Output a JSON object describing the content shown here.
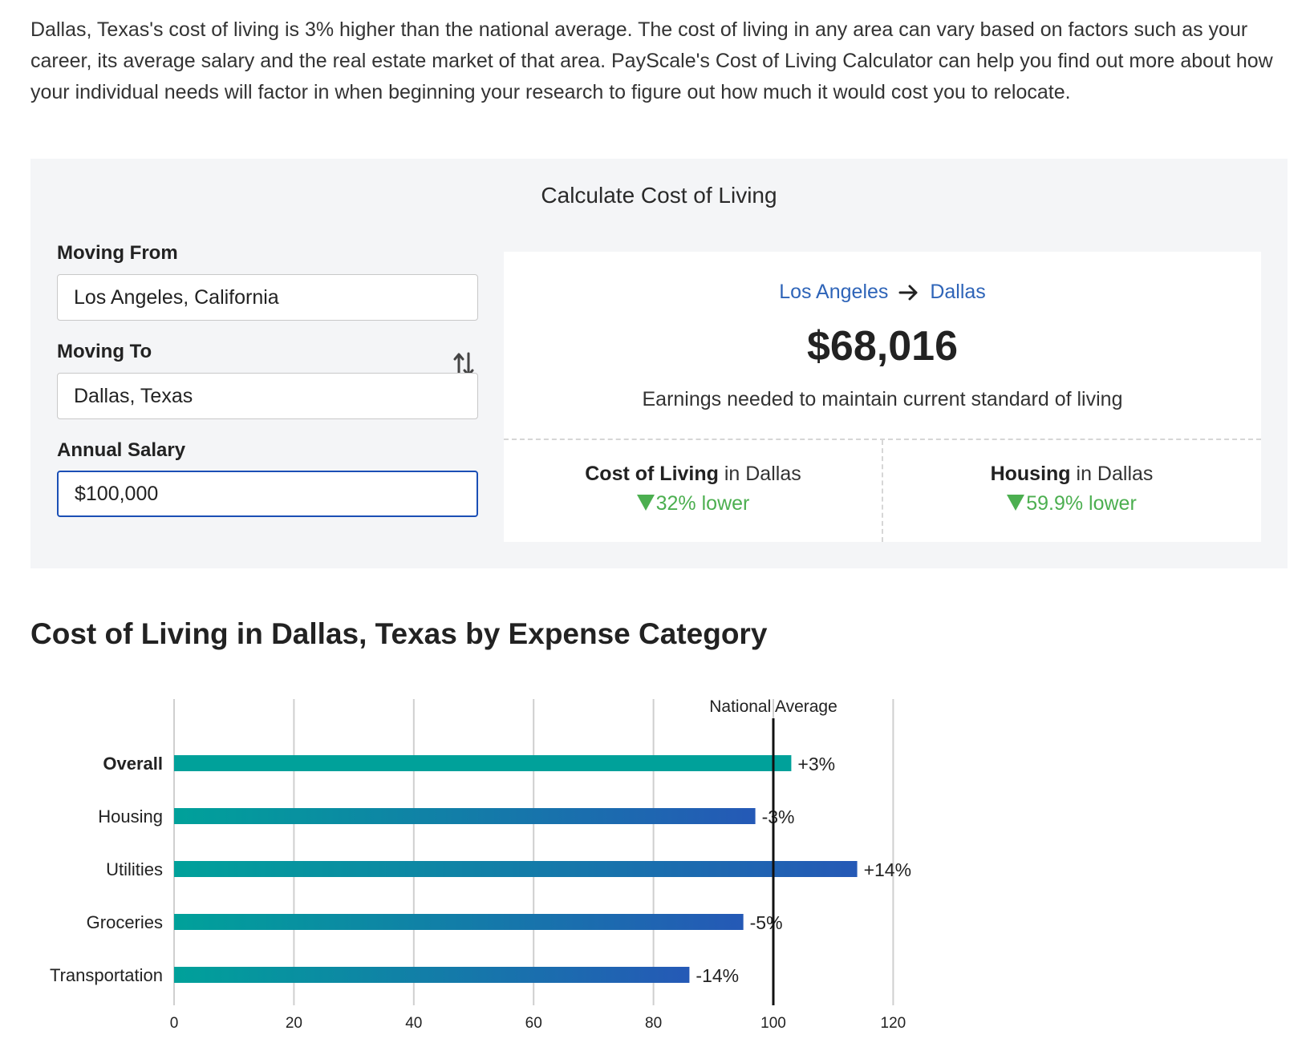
{
  "intro": {
    "text": "Dallas, Texas's cost of living is 3% higher than the national average. The cost of living in any area can vary based on factors such as your career, its average salary and the real estate market of that area. PayScale's Cost of Living Calculator can help you find out more about how your individual needs will factor in when beginning your research to figure out how much it would cost you to relocate."
  },
  "calculator": {
    "title": "Calculate Cost of Living",
    "moving_from_label": "Moving From",
    "moving_from_value": "Los Angeles, California",
    "moving_to_label": "Moving To",
    "moving_to_value": "Dallas, Texas",
    "salary_label": "Annual Salary",
    "salary_value": "$100,000",
    "swap_icon": "swap-vertical-icon"
  },
  "result": {
    "from_city": "Los Angeles",
    "to_city": "Dallas",
    "arrow_icon": "arrow-right-icon",
    "amount": "$68,016",
    "caption": "Earnings needed to maintain current standard of living",
    "col_label_bold": "Cost of Living",
    "col_label_rest": " in Dallas",
    "col_delta": "32% lower",
    "housing_label_bold": "Housing",
    "housing_label_rest": " in Dallas",
    "housing_delta": "59.9% lower",
    "delta_color": "#4caf50",
    "down_icon": "triangle-down-icon"
  },
  "section": {
    "title": "Cost of Living in Dallas, Texas by Expense Category"
  },
  "chart_data": {
    "type": "bar",
    "orientation": "horizontal",
    "title": "",
    "xlabel": "",
    "ylabel": "",
    "categories": [
      "Overall",
      "Housing",
      "Utilities",
      "Groceries",
      "Transportation"
    ],
    "values": [
      103,
      97,
      114,
      95,
      86
    ],
    "value_labels": [
      "+3%",
      "-3%",
      "+14%",
      "-5%",
      "-14%"
    ],
    "bold_category": "Overall",
    "xlim": [
      0,
      120
    ],
    "xticks": [
      0,
      20,
      40,
      60,
      80,
      100,
      120
    ],
    "grid": true,
    "reference_line": {
      "value": 100,
      "label": "National Average"
    },
    "gradient": [
      "#00a19a",
      "#2559b6"
    ]
  }
}
